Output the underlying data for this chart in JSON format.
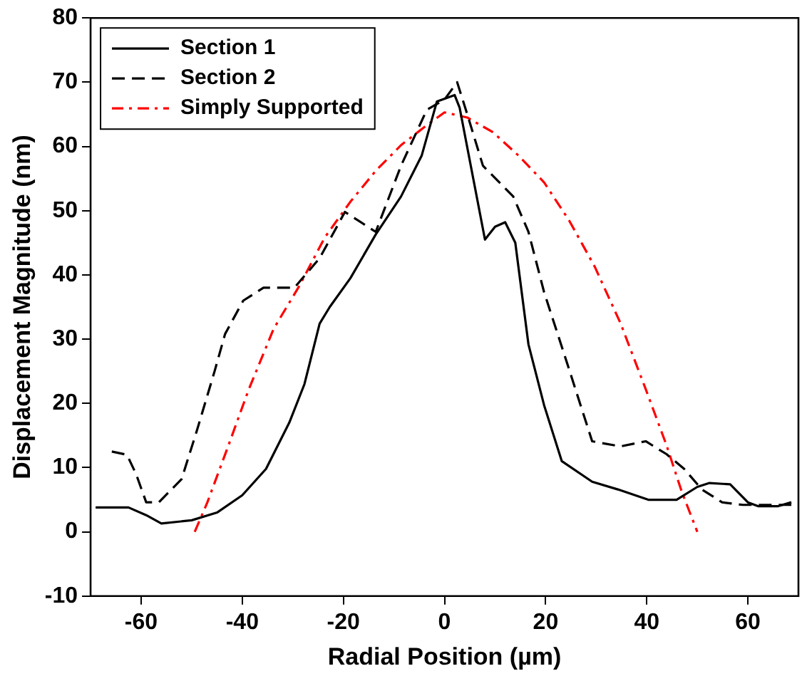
{
  "chart_data": {
    "type": "line",
    "xlabel": "Radial Position (µm)",
    "ylabel": "Displacement Magnitude (nm)",
    "xlim": [
      -70,
      70
    ],
    "xticks": [
      -60,
      -40,
      -20,
      0,
      20,
      40,
      60
    ],
    "ylim": [
      -10,
      80
    ],
    "yticks": [
      -10,
      0,
      10,
      20,
      30,
      40,
      50,
      60,
      70,
      80
    ],
    "grid": false,
    "legend": "top left",
    "marker": "none",
    "series": [
      {
        "name": "Section 1",
        "color": "#000000",
        "line_style": "solid",
        "x": [
          -69,
          -62.5,
          -59,
          -56,
          -50,
          -45,
          -40,
          -35.3,
          -30.7,
          -27.7,
          -24.7,
          -22.7,
          -18.6,
          -13.6,
          -8.6,
          -4.5,
          -1.5,
          2,
          3,
          8,
          10,
          12,
          14,
          16.6,
          19.7,
          23.2,
          29.2,
          34.3,
          40.3,
          45.9,
          50,
          52.4,
          56.5,
          60,
          62,
          66,
          68.6
        ],
        "values": [
          3.8,
          3.8,
          2.6,
          1.3,
          1.8,
          3,
          5.7,
          9.8,
          17,
          23,
          32.4,
          35,
          39.5,
          46.3,
          52.2,
          58.6,
          67,
          68,
          66,
          45.5,
          47.5,
          48.2,
          45,
          29.2,
          19.7,
          11,
          7.8,
          6.6,
          5,
          5,
          7,
          7.6,
          7.4,
          4.6,
          4,
          4,
          4.6
        ]
      },
      {
        "name": "Section 2",
        "color": "#000000",
        "line_style": "dashed",
        "x": [
          -65.8,
          -62.8,
          -61,
          -59,
          -56.5,
          -52,
          -49,
          -45.4,
          -43.4,
          -39.8,
          -35.8,
          -29.7,
          -24.7,
          -19.7,
          -13.6,
          -8.6,
          -3.5,
          0,
          2.5,
          4.5,
          7.6,
          13.6,
          16.6,
          19.7,
          23.7,
          29.2,
          34.8,
          39.8,
          43.9,
          47.4,
          50.9,
          54.9,
          59,
          68.6
        ],
        "values": [
          12.5,
          12,
          9,
          4.6,
          4.6,
          8.2,
          15.7,
          25.2,
          30.8,
          36,
          38,
          38,
          42.6,
          49.8,
          46.7,
          57,
          65.7,
          67.3,
          70,
          65,
          57,
          52.2,
          46.7,
          37.3,
          27.6,
          14.1,
          13.3,
          14.1,
          12.1,
          9.8,
          6.6,
          4.6,
          4.2,
          4.2
        ]
      },
      {
        "name": "Simply Supported",
        "color": "#ff0000",
        "line_style": "dashdot",
        "x": [
          -49.4,
          -46.9,
          -42.8,
          -38.8,
          -33.8,
          -28.7,
          -23.7,
          -18.6,
          -13.6,
          -8.6,
          -3.5,
          0,
          4.5,
          9.6,
          14.6,
          19.7,
          24.7,
          29.7,
          34.8,
          39.8,
          43.9,
          46.9,
          50
        ],
        "values": [
          0,
          4.6,
          13.3,
          22,
          31.6,
          38.3,
          45.8,
          51.4,
          56.2,
          60.2,
          63.3,
          65.3,
          64.5,
          62.2,
          58.6,
          54.4,
          48.4,
          41.3,
          32.5,
          22.2,
          13.5,
          6.3,
          0
        ]
      }
    ]
  }
}
